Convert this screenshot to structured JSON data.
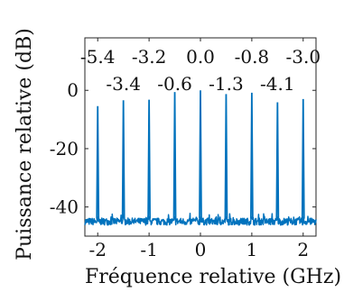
{
  "chart_data": {
    "type": "line",
    "title": "",
    "xlabel": "Fréquence relative (GHz)",
    "ylabel": "Puissance relative (dB)",
    "xlim": [
      -2.25,
      2.25
    ],
    "ylim": [
      -50,
      18
    ],
    "xticks": [
      -2,
      -1,
      0,
      1,
      2
    ],
    "yticks": [
      -40,
      -20,
      0
    ],
    "grid": false,
    "line_color": "#0072BD",
    "noise_floor_db": -45,
    "series": [
      {
        "x": [
          -2.0,
          -1.5,
          -1.0,
          -0.5,
          0.0,
          0.5,
          1.0,
          1.5,
          2.0
        ],
        "values": [
          -5.4,
          -3.4,
          -3.2,
          -0.6,
          0.0,
          -1.3,
          -0.8,
          -4.1,
          -3.0
        ]
      }
    ],
    "peak_labels": {
      "top_row": [
        "-5.4",
        "-3.2",
        "0.0",
        "-0.8",
        "-3.0"
      ],
      "bottom_row": [
        "-3.4",
        "-0.6",
        "-1.3",
        "-4.1"
      ]
    }
  }
}
